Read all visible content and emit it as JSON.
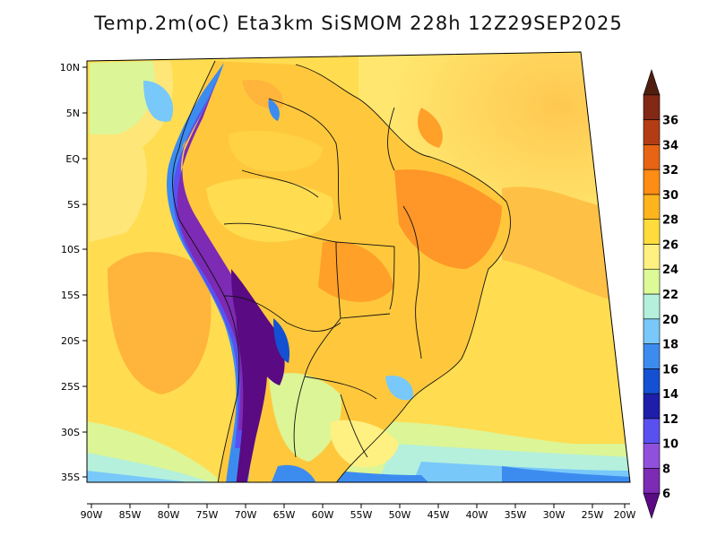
{
  "title": "Temp.2m(oC) Eta3km SiSMOM 228h 12Z29SEP2025",
  "lat_labels": [
    "10N",
    "5N",
    "EQ",
    "5S",
    "10S",
    "15S",
    "20S",
    "25S",
    "30S",
    "35S"
  ],
  "lon_labels": [
    "90W",
    "85W",
    "80W",
    "75W",
    "70W",
    "65W",
    "60W",
    "55W",
    "50W",
    "45W",
    "40W",
    "35W",
    "30W",
    "25W",
    "20W"
  ],
  "colorbar": {
    "labels": [
      "6",
      "8",
      "10",
      "12",
      "14",
      "16",
      "18",
      "20",
      "22",
      "24",
      "26",
      "28",
      "30",
      "32",
      "34",
      "36"
    ],
    "colors": [
      "#5a0a82",
      "#7d2ab4",
      "#9150dc",
      "#5a50f0",
      "#1e1eaa",
      "#1450d2",
      "#3c8cf0",
      "#78c8fa",
      "#b4f0dc",
      "#dcfa96",
      "#fff082",
      "#ffdc3c",
      "#ffb41e",
      "#ff8c14",
      "#e66414",
      "#b43c14",
      "#822814",
      "#501e0f"
    ]
  }
}
